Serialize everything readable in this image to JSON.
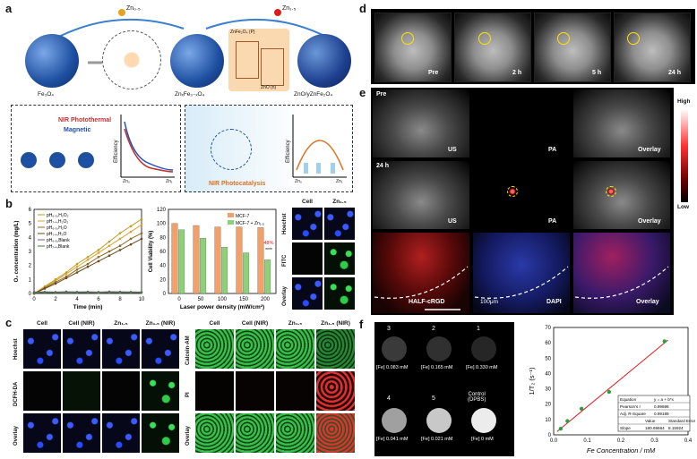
{
  "panel_labels": [
    "a",
    "b",
    "c",
    "d",
    "e",
    "f"
  ],
  "a": {
    "top_labels": {
      "zn_a": "Zn₀.₅",
      "zn_b": "Zn₁.₅"
    },
    "spheres": [
      "Fe₃O₄",
      "ZnₓFe₃₋ₓO₄",
      "ZnO/yZnFe₂O₄"
    ],
    "band": {
      "p": "ZnFe₂O₄ (P)",
      "n": "ZnO (n)"
    },
    "left_box": {
      "photothermal": "NIR Photothermal",
      "magnetic": "Magnetic",
      "ylabel": "Efficiency",
      "x0": "Zn₀",
      "x1": "Zn₁"
    },
    "right_box": {
      "title": "NIR Photocatalysis",
      "ylabel": "Efficiency",
      "x0": "Zn₀",
      "x1": "Zn₁"
    }
  },
  "b": {
    "chart_data": [
      {
        "type": "line",
        "xlabel": "Time (min)",
        "ylabel": "O₂ concentration (mg/L)",
        "xlim": [
          0,
          10
        ],
        "ylim": [
          0,
          6
        ],
        "xticks": [
          0,
          2,
          4,
          6,
          8,
          10
        ],
        "yticks": [
          0,
          1,
          2,
          3,
          4,
          5,
          6
        ],
        "x": [
          0,
          1,
          2,
          3,
          4,
          5,
          6,
          7,
          8,
          9,
          10
        ],
        "series": [
          {
            "name": "pH₆.₅,H₂O₂",
            "color": "#b8a020",
            "values": [
              0,
              0.5,
              1.0,
              1.5,
              2.1,
              2.6,
              3.1,
              3.7,
              4.3,
              4.8,
              5.3
            ]
          },
          {
            "name": "pH₇.₄,H₂O₂",
            "color": "#e0a030",
            "values": [
              0,
              0.45,
              0.9,
              1.4,
              1.9,
              2.4,
              2.9,
              3.4,
              3.9,
              4.4,
              4.9
            ]
          },
          {
            "name": "pH₆.₅,H₂O",
            "color": "#8a6a2a",
            "values": [
              0,
              0.4,
              0.8,
              1.2,
              1.7,
              2.1,
              2.6,
              3.0,
              3.4,
              3.9,
              4.3
            ]
          },
          {
            "name": "pH₇.₄,H₂O",
            "color": "#6a4a1a",
            "values": [
              0,
              0.35,
              0.7,
              1.1,
              1.5,
              1.9,
              2.3,
              2.7,
              3.1,
              3.5,
              3.9
            ]
          },
          {
            "name": "pH₆.₅,Blank",
            "color": "#7a5a7a",
            "values": [
              0.1,
              0.12,
              0.1,
              0.13,
              0.11,
              0.12,
              0.1,
              0.13,
              0.12,
              0.11,
              0.1
            ]
          },
          {
            "name": "pH₇.₄,Blank",
            "color": "#4a7a4a",
            "values": [
              0.05,
              0.07,
              0.06,
              0.08,
              0.06,
              0.07,
              0.05,
              0.07,
              0.06,
              0.07,
              0.06
            ]
          }
        ]
      },
      {
        "type": "bar",
        "xlabel": "Laser power density (mW/cm²)",
        "ylabel": "Cell Viability (%)",
        "ylim": [
          0,
          120
        ],
        "categories": [
          "0",
          "50",
          "100",
          "150",
          "200"
        ],
        "yticks": [
          0,
          20,
          40,
          60,
          80,
          100,
          120
        ],
        "series": [
          {
            "name": "MCF-7",
            "color": "#f2a06a",
            "values": [
              100,
              97,
              95,
              95,
              94
            ]
          },
          {
            "name": "MCF-7 + Zn₁.₅",
            "color": "#8fcf7a",
            "values": [
              91,
              79,
              66,
              58,
              48
            ]
          }
        ],
        "annotations": [
          "48%",
          "****"
        ]
      }
    ],
    "cols": [
      "Cell",
      "Zn₁.₅"
    ],
    "rows": [
      "Hoechst",
      "FITC",
      "Overlay"
    ]
  },
  "c": {
    "cols": [
      "Cell",
      "Cell (NIR)",
      "Zn₁.₅",
      "Zn₁.₅ (NIR)"
    ],
    "rows_left": [
      "Hoechst",
      "DCFH-DA",
      "Overlay"
    ],
    "rows_right": [
      "Calcein-AM",
      "PI",
      "Overlay"
    ]
  },
  "d": {
    "times": [
      "Pre",
      "2 h",
      "5 h",
      "24 h"
    ]
  },
  "e": {
    "row1": {
      "time": "Pre",
      "labels": [
        "US",
        "PA",
        "Overlay"
      ]
    },
    "row2": {
      "time": "24 h",
      "labels": [
        "US",
        "PA",
        "Overlay"
      ]
    },
    "row3": {
      "labels": [
        "HALF-cRGD",
        "DAPI",
        "Overlay"
      ],
      "scale": "100μm"
    },
    "colorbar": {
      "high": "High",
      "low": "Low"
    }
  },
  "f": {
    "wells": [
      {
        "id": "3",
        "conc": "[Fe] 0.083 mM",
        "gray": "#3a3a3a"
      },
      {
        "id": "2",
        "conc": "[Fe] 0.165 mM",
        "gray": "#303030"
      },
      {
        "id": "1",
        "conc": "[Fe] 0.330 mM",
        "gray": "#262626"
      },
      {
        "id": "4",
        "conc": "[Fe] 0.041 mM",
        "gray": "#a0a0a0"
      },
      {
        "id": "5",
        "conc": "[Fe] 0.021 mM",
        "gray": "#c8c8c8"
      },
      {
        "id": "Control\n(DPBS)",
        "conc": "[Fe] 0 mM",
        "gray": "#e8e8e8"
      }
    ],
    "chart_data": {
      "type": "scatter",
      "xlabel": "Fe Concentration / mM",
      "ylabel": "1/T₂ (s⁻¹)",
      "xlim": [
        0,
        0.4
      ],
      "ylim": [
        0,
        70
      ],
      "xticks": [
        0.0,
        0.1,
        0.2,
        0.3,
        0.4
      ],
      "yticks": [
        0,
        10,
        20,
        30,
        40,
        50,
        60,
        70
      ],
      "x": [
        0.021,
        0.041,
        0.083,
        0.165,
        0.33
      ],
      "y": [
        4,
        9,
        17,
        28,
        61
      ],
      "fit": {
        "slope": 180.69664,
        "intercept": 0.3
      },
      "table": [
        [
          "Equation",
          "y = a + b*x"
        ],
        [
          "Pearson's r",
          "0.99696"
        ],
        [
          "Adj. R-Square",
          "0.99189"
        ],
        [
          "",
          "Value",
          "Standard Error"
        ],
        [
          "Slope",
          "180.69664",
          "8.15924"
        ]
      ]
    }
  }
}
